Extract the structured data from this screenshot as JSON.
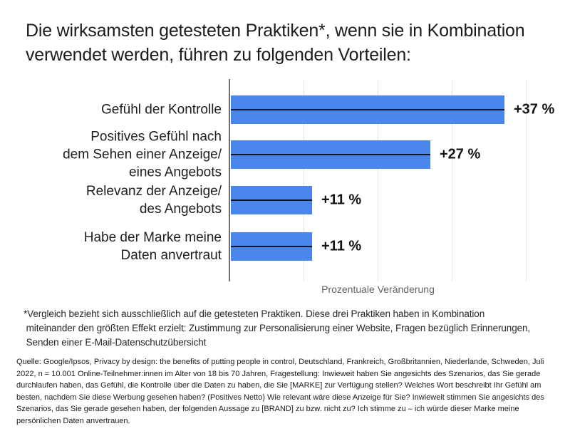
{
  "title": {
    "lines": [
      "Die wirksamsten getesteten Praktiken*, wenn sie in Kombination",
      "verwendet werden, führen zu folgenden Vorteilen:"
    ]
  },
  "chart_data": {
    "type": "bar",
    "orientation": "horizontal",
    "title": "Die wirksamsten getesteten Praktiken*, wenn sie in Kombination verwendet werden, führen zu folgenden Vorteilen:",
    "categories": [
      [
        "Gefühl der Kontrolle"
      ],
      [
        "Positives Gefühl nach",
        "dem Sehen einer Anzeige/",
        "eines Angebots"
      ],
      [
        "Relevanz der Anzeige/",
        "des Angebots"
      ],
      [
        "Habe der Marke meine",
        "Daten anvertraut"
      ]
    ],
    "values": [
      37,
      27,
      11,
      11
    ],
    "value_labels": [
      "+37 %",
      "+27 %",
      "+11 %",
      "+11 %"
    ],
    "xlabel": "Prozentuale Veränderung",
    "ylabel": "",
    "xlim": [
      0,
      44
    ],
    "gridlines": [
      10,
      20,
      30,
      40
    ],
    "grid": true,
    "legend": false,
    "bar_color": "#4a86ec",
    "bar_marker_color": "#071530",
    "axis_color": "#707070",
    "gridline_color": "#e5e5e5"
  },
  "footnote": {
    "lines": [
      "*Vergleich bezieht sich ausschließlich auf die getesteten Praktiken. Diese drei Praktiken haben in Kombination",
      " miteinander den größten Effekt erzielt: Zustimmung zur Personalisierung einer Website, Fragen bezüglich Erinnerungen,",
      " Senden einer E-Mail-Datenschutzübersicht"
    ]
  },
  "source": {
    "text": "Quelle: Google/Ipsos, Privacy by design: the benefits of putting people in control, Deutschland, Frankreich, Großbritannien, Niederlande, Schweden, Juli 2022, n = 10.001 Online-Teilnehmer:innen im Alter von 18 bis 70 Jahren, Fragestellung: Inwieweit haben Sie angesichts des Szenarios, das Sie gerade durchlaufen haben, das Gefühl, die Kontrolle über die Daten zu haben, die Sie [MARKE] zur Verfügung stellen? Welches Wort beschreibt Ihr Gefühl am besten, nachdem Sie diese Werbung gesehen haben? (Positives Netto) Wie relevant wäre diese Anzeige für Sie? Inwieweit stimmen Sie angesichts des Szenarios, das Sie gerade gesehen haben, der folgenden Aussage zu [BRAND] zu bzw. nicht zu? Ich stimme zu – ich würde dieser Marke meine persönlichen Daten anvertrauen."
  }
}
